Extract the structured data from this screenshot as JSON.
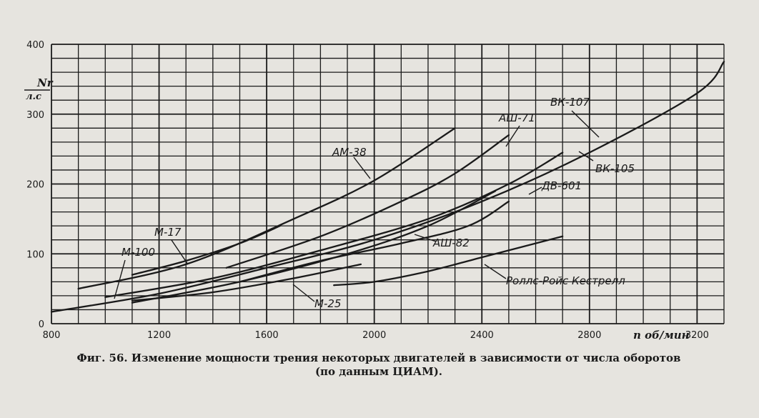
{
  "chart_data": {
    "type": "line",
    "ylabel_top": "Nr",
    "ylabel_bottom": "л.с",
    "xlabel": "n об/мин",
    "xlim": [
      800,
      3300
    ],
    "ylim": [
      0,
      400
    ],
    "grid": true,
    "x_ticks": [
      800,
      1200,
      1600,
      2000,
      2400,
      2800,
      3200
    ],
    "y_ticks": [
      0,
      100,
      200,
      300,
      400
    ],
    "series": [
      {
        "name": "АМ-38",
        "x": [
          900,
          1300,
          1700,
          2000,
          2300
        ],
        "y": [
          50,
          85,
          150,
          205,
          280
        ]
      },
      {
        "name": "АШ-71",
        "x": [
          1450,
          1800,
          2100,
          2300,
          2500
        ],
        "y": [
          80,
          125,
          175,
          215,
          270
        ]
      },
      {
        "name": "ВК-107",
        "x": [
          800,
          1200,
          1600,
          2000,
          2400,
          2800,
          3200,
          3300
        ],
        "y": [
          17,
          43,
          80,
          120,
          175,
          245,
          330,
          375
        ]
      },
      {
        "name": "ВК-105",
        "x": [
          1000,
          1400,
          1800,
          2200,
          2500,
          2700
        ],
        "y": [
          38,
          65,
          105,
          150,
          200,
          245
        ]
      },
      {
        "name": "ДВ-601",
        "x": [
          1100,
          1500,
          1900,
          2200,
          2450
        ],
        "y": [
          30,
          60,
          100,
          140,
          190
        ]
      },
      {
        "name": "АШ-82",
        "x": [
          1500,
          1800,
          2100,
          2350,
          2500
        ],
        "y": [
          60,
          90,
          115,
          140,
          175
        ]
      },
      {
        "name": "М-100",
        "x": [
          1100,
          1300,
          1500,
          1650
        ],
        "y": [
          70,
          90,
          115,
          140
        ]
      },
      {
        "name": "Роллс-Ройс Кестрелл",
        "x": [
          1850,
          2000,
          2200,
          2400,
          2700
        ],
        "y": [
          55,
          60,
          75,
          95,
          125
        ]
      },
      {
        "name": "М-25",
        "x": [
          1100,
          1400,
          1700,
          1950
        ],
        "y": [
          33,
          45,
          65,
          85
        ]
      }
    ],
    "labels": {
      "am38": "АМ-38",
      "ash71": "АШ-71",
      "vk107": "ВК-107",
      "vk105": "ВК-105",
      "dv601": "ДВ-601",
      "ash82": "АШ-82",
      "m17": "М-17",
      "m100": "М-100",
      "rolls": "Роллс-Ройс Кестрелл",
      "m25": "М-25"
    }
  },
  "caption_line1": "Фиг. 56. Изменение мощности трения некоторых двигателей в зависимости от числа оборотов",
  "caption_line2": "(по данным ЦИАМ)."
}
